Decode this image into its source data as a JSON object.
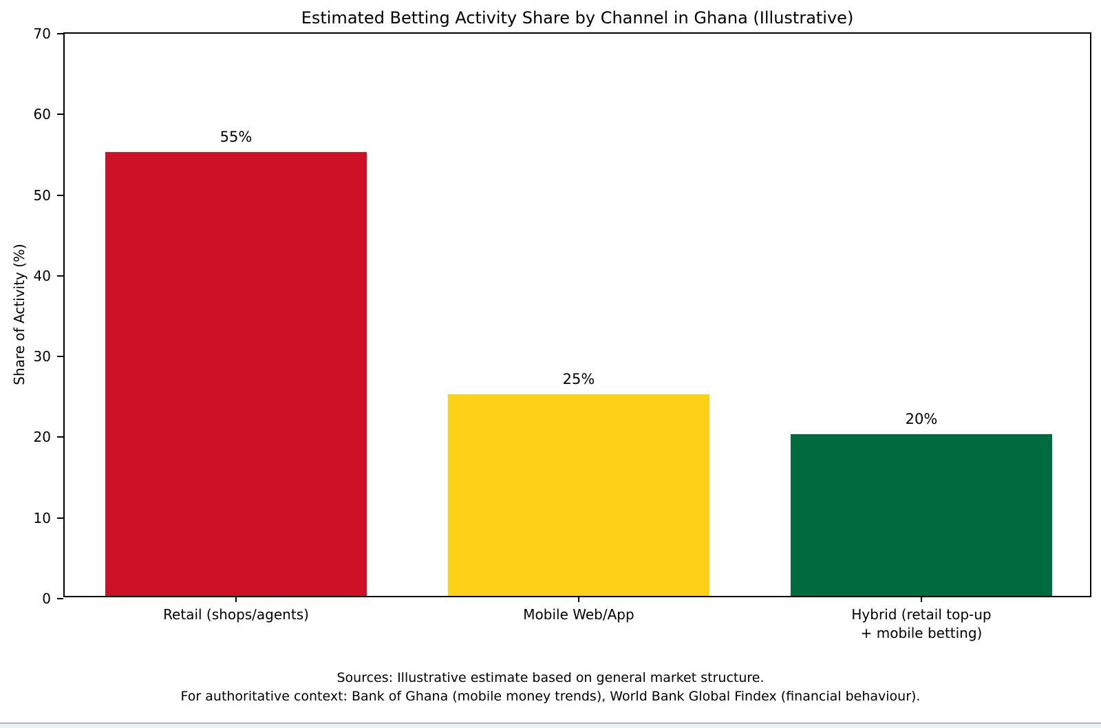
{
  "chart_data": {
    "type": "bar",
    "title": "Estimated Betting Activity Share by Channel in Ghana (Illustrative)",
    "ylabel": "Share of Activity (%)",
    "xlabel": "",
    "categories": [
      "Retail (shops/agents)",
      "Mobile Web/App",
      "Hybrid (retail top-up\n+ mobile betting)"
    ],
    "values": [
      55,
      25,
      20
    ],
    "value_labels": [
      "55%",
      "25%",
      "20%"
    ],
    "colors": [
      "#CE1126",
      "#FCD116",
      "#006B3F"
    ],
    "ylim": [
      0,
      70
    ],
    "yticks": [
      0,
      10,
      20,
      30,
      40,
      50,
      60,
      70
    ],
    "grid": false,
    "legend_position": "none"
  },
  "footer": {
    "line1": "Sources: Illustrative estimate based on general market structure.",
    "line2": "For authoritative context: Bank of Ghana (mobile money trends), World Bank Global Findex (financial behaviour)."
  }
}
